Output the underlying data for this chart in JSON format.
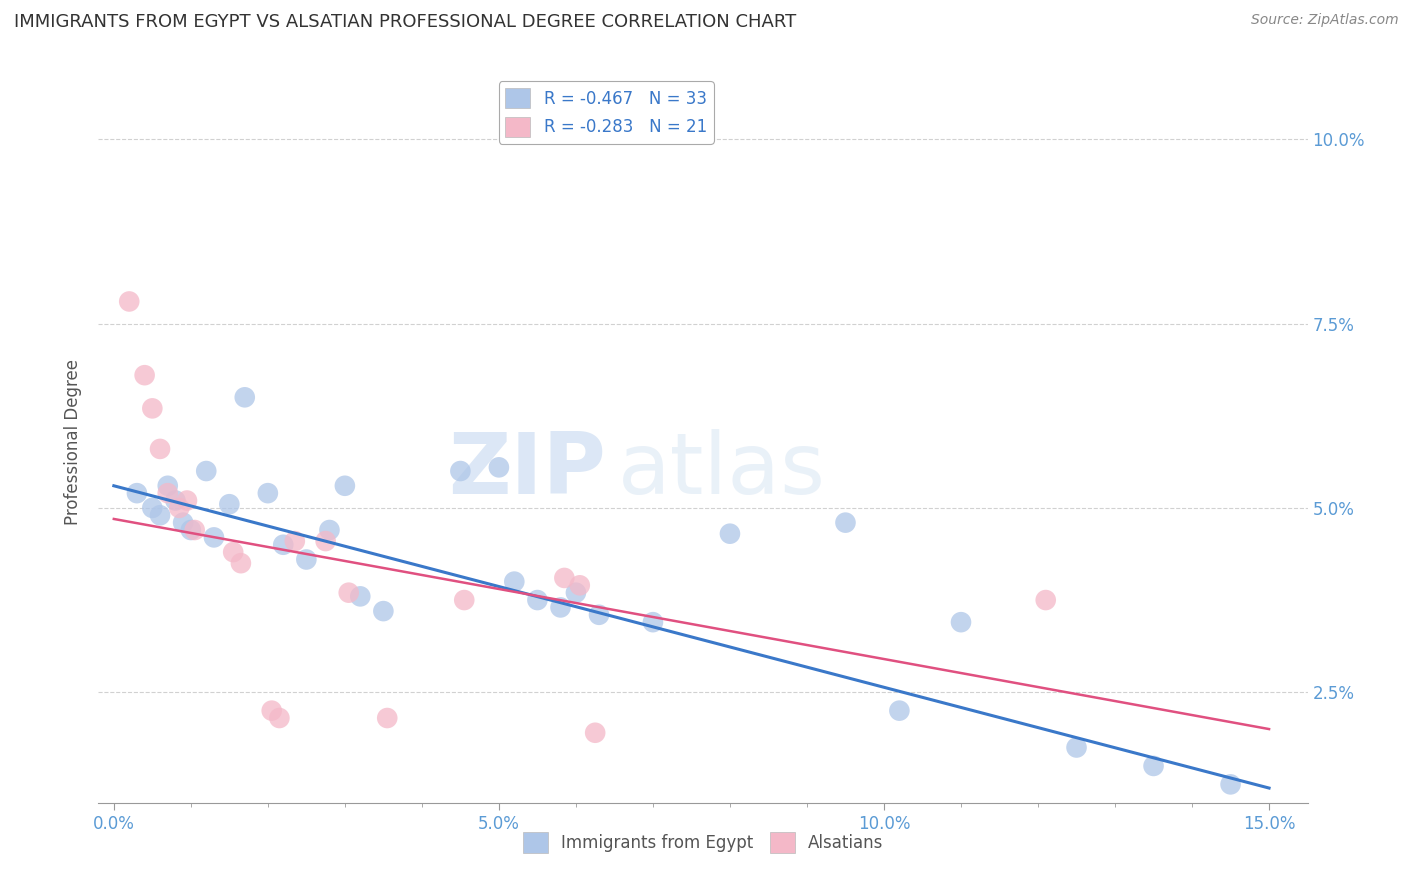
{
  "title": "IMMIGRANTS FROM EGYPT VS ALSATIAN PROFESSIONAL DEGREE CORRELATION CHART",
  "source": "Source: ZipAtlas.com",
  "ylabel": "Professional Degree",
  "xlabel_vals": [
    0.0,
    5.0,
    10.0,
    15.0
  ],
  "ylabel_vals": [
    2.5,
    5.0,
    7.5,
    10.0
  ],
  "xlim": [
    -0.2,
    15.5
  ],
  "ylim": [
    1.0,
    10.8
  ],
  "legend_entries": [
    {
      "label": "R = -0.467   N = 33",
      "color": "#aec6e8"
    },
    {
      "label": "R = -0.283   N = 21",
      "color": "#f4b8c8"
    }
  ],
  "blue_scatter": [
    [
      0.3,
      5.2
    ],
    [
      0.5,
      5.0
    ],
    [
      0.6,
      4.9
    ],
    [
      0.7,
      5.3
    ],
    [
      0.8,
      5.1
    ],
    [
      0.9,
      4.8
    ],
    [
      1.0,
      4.7
    ],
    [
      1.2,
      5.5
    ],
    [
      1.3,
      4.6
    ],
    [
      1.5,
      5.05
    ],
    [
      1.7,
      6.5
    ],
    [
      2.0,
      5.2
    ],
    [
      2.2,
      4.5
    ],
    [
      2.5,
      4.3
    ],
    [
      2.8,
      4.7
    ],
    [
      3.0,
      5.3
    ],
    [
      3.2,
      3.8
    ],
    [
      3.5,
      3.6
    ],
    [
      4.5,
      5.5
    ],
    [
      5.0,
      5.55
    ],
    [
      5.2,
      4.0
    ],
    [
      5.5,
      3.75
    ],
    [
      5.8,
      3.65
    ],
    [
      6.0,
      3.85
    ],
    [
      6.3,
      3.55
    ],
    [
      7.0,
      3.45
    ],
    [
      8.0,
      4.65
    ],
    [
      9.5,
      4.8
    ],
    [
      10.2,
      2.25
    ],
    [
      11.0,
      3.45
    ],
    [
      12.5,
      1.75
    ],
    [
      13.5,
      1.5
    ],
    [
      14.5,
      1.25
    ]
  ],
  "pink_scatter": [
    [
      0.2,
      7.8
    ],
    [
      0.4,
      6.8
    ],
    [
      0.5,
      6.35
    ],
    [
      0.6,
      5.8
    ],
    [
      0.7,
      5.2
    ],
    [
      0.85,
      5.0
    ],
    [
      0.95,
      5.1
    ],
    [
      1.05,
      4.7
    ],
    [
      1.55,
      4.4
    ],
    [
      1.65,
      4.25
    ],
    [
      2.05,
      2.25
    ],
    [
      2.15,
      2.15
    ],
    [
      2.35,
      4.55
    ],
    [
      2.75,
      4.55
    ],
    [
      3.05,
      3.85
    ],
    [
      3.55,
      2.15
    ],
    [
      4.55,
      3.75
    ],
    [
      5.85,
      4.05
    ],
    [
      6.05,
      3.95
    ],
    [
      6.25,
      1.95
    ],
    [
      12.1,
      3.75
    ]
  ],
  "blue_line_x": [
    0.0,
    15.0
  ],
  "blue_line_y": [
    5.3,
    1.2
  ],
  "pink_line_x": [
    0.0,
    15.0
  ],
  "pink_line_y": [
    4.85,
    2.0
  ],
  "scatter_blue_color": "#aec6e8",
  "scatter_pink_color": "#f4b8c8",
  "line_blue_color": "#3a78c9",
  "line_pink_color": "#e05080",
  "watermark_zip": "ZIP",
  "watermark_atlas": "atlas",
  "background_color": "#ffffff",
  "grid_color": "#cccccc",
  "title_color": "#333333",
  "axis_label_color": "#5b9bd5",
  "source_color": "#888888",
  "bottom_legend_labels": [
    "Immigrants from Egypt",
    "Alsatians"
  ]
}
